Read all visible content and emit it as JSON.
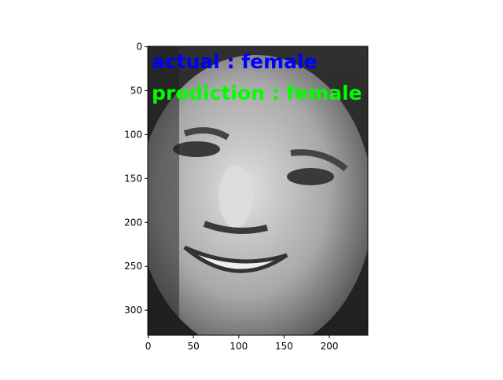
{
  "chart_data": {
    "type": "image",
    "xlim": [
      -0.5,
      242.5
    ],
    "ylim": [
      328.5,
      -0.5
    ],
    "xticks": [
      0,
      50,
      100,
      150,
      200
    ],
    "yticks": [
      0,
      50,
      100,
      150,
      200,
      250,
      300
    ],
    "annotations": [
      {
        "text": "actual : female",
        "color": "#0000ff"
      },
      {
        "text": "prediction : female",
        "color": "#00ff00"
      }
    ]
  }
}
